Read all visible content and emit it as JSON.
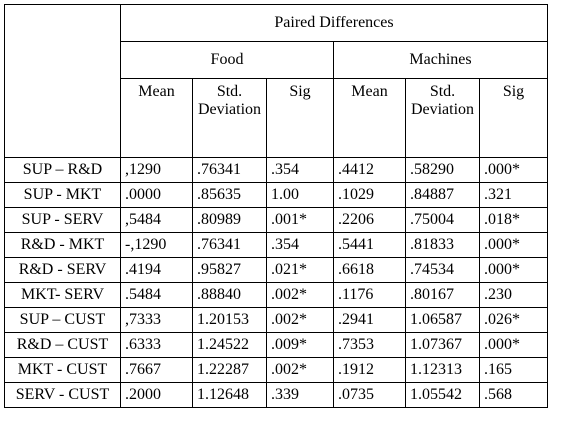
{
  "table": {
    "paired_differences": "Paired Differences",
    "groups": [
      "Food",
      "Machines"
    ],
    "columns": {
      "mean": "Mean",
      "std_deviation": "Std. Deviation",
      "sig": "Sig"
    },
    "rows": [
      {
        "label": "SUP – R&D",
        "food_mean": ",1290",
        "food_sd": ".76341",
        "food_sig": ".354",
        "mach_mean": ".4412",
        "mach_sd": ".58290",
        "mach_sig": ".000*"
      },
      {
        "label": "SUP - MKT",
        "food_mean": ".0000",
        "food_sd": ".85635",
        "food_sig": "1.00",
        "mach_mean": ".1029",
        "mach_sd": ".84887",
        "mach_sig": ".321"
      },
      {
        "label": "SUP - SERV",
        "food_mean": ",5484",
        "food_sd": ".80989",
        "food_sig": ".001*",
        "mach_mean": ".2206",
        "mach_sd": ".75004",
        "mach_sig": ".018*"
      },
      {
        "label": "R&D - MKT",
        "food_mean": "-,1290",
        "food_sd": ".76341",
        "food_sig": ".354",
        "mach_mean": ".5441",
        "mach_sd": ".81833",
        "mach_sig": ".000*"
      },
      {
        "label": "R&D - SERV",
        "food_mean": ".4194",
        "food_sd": ".95827",
        "food_sig": ".021*",
        "mach_mean": ".6618",
        "mach_sd": ".74534",
        "mach_sig": ".000*"
      },
      {
        "label": "MKT- SERV",
        "food_mean": ".5484",
        "food_sd": ".88840",
        "food_sig": ".002*",
        "mach_mean": ".1176",
        "mach_sd": ".80167",
        "mach_sig": ".230"
      },
      {
        "label": "SUP – CUST",
        "food_mean": ",7333",
        "food_sd": "1.20153",
        "food_sig": ".002*",
        "mach_mean": ".2941",
        "mach_sd": "1.06587",
        "mach_sig": ".026*"
      },
      {
        "label": "R&D – CUST",
        "food_mean": ".6333",
        "food_sd": "1.24522",
        "food_sig": ".009*",
        "mach_mean": ".7353",
        "mach_sd": "1.07367",
        "mach_sig": ".000*"
      },
      {
        "label": "MKT - CUST",
        "food_mean": ".7667",
        "food_sd": "1.22287",
        "food_sig": ".002*",
        "mach_mean": ".1912",
        "mach_sd": "1.12313",
        "mach_sig": ".165"
      },
      {
        "label": "SERV - CUST",
        "food_mean": ".2000",
        "food_sd": "1.12648",
        "food_sig": ".339",
        "mach_mean": ".0735",
        "mach_sd": "1.05542",
        "mach_sig": ".568"
      }
    ]
  }
}
